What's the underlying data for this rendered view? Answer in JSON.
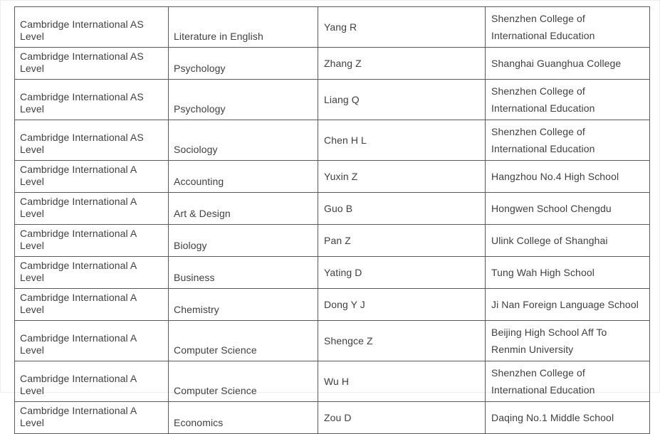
{
  "colors": {
    "background": "#ffffff",
    "table_border": "#5a5a5a",
    "text": "#3f3f3f"
  },
  "table": {
    "column_keys": [
      "qualification",
      "subject",
      "student",
      "school"
    ],
    "rows": [
      {
        "qualification": "Cambridge International AS Level",
        "subject": "Literature in English",
        "student": "Yang R",
        "school": "Shenzhen College of International Education"
      },
      {
        "qualification": "Cambridge International AS Level",
        "subject": "Psychology",
        "student": "Zhang Z",
        "school": "Shanghai Guanghua College"
      },
      {
        "qualification": "Cambridge International AS Level",
        "subject": "Psychology",
        "student": "Liang Q",
        "school": "Shenzhen College of International Education"
      },
      {
        "qualification": "Cambridge International AS Level",
        "subject": "Sociology",
        "student": "Chen H L",
        "school": "Shenzhen College of International Education"
      },
      {
        "qualification": "Cambridge International A Level",
        "subject": "Accounting",
        "student": "Yuxin Z",
        "school": "Hangzhou No.4 High School"
      },
      {
        "qualification": "Cambridge International A Level",
        "subject": "Art & Design",
        "student": "Guo B",
        "school": "Hongwen School Chengdu"
      },
      {
        "qualification": "Cambridge International A Level",
        "subject": "Biology",
        "student": "Pan Z",
        "school": "Ulink College of Shanghai"
      },
      {
        "qualification": "Cambridge International A Level",
        "subject": "Business",
        "student": "Yating D",
        "school": "Tung Wah High School"
      },
      {
        "qualification": "Cambridge International A Level",
        "subject": "Chemistry",
        "student": "Dong Y J",
        "school": "Ji Nan Foreign Language School"
      },
      {
        "qualification": "Cambridge International A Level",
        "subject": "Computer Science",
        "student": "Shengce Z",
        "school": "Beijing High School Aff To Renmin University"
      },
      {
        "qualification": "Cambridge International A Level",
        "subject": "Computer Science",
        "student": "Wu H",
        "school": "Shenzhen College of International Education"
      },
      {
        "qualification": "Cambridge International A Level",
        "subject": "Economics",
        "student": "Zou D",
        "school": "Daqing No.1 Middle School"
      }
    ]
  }
}
